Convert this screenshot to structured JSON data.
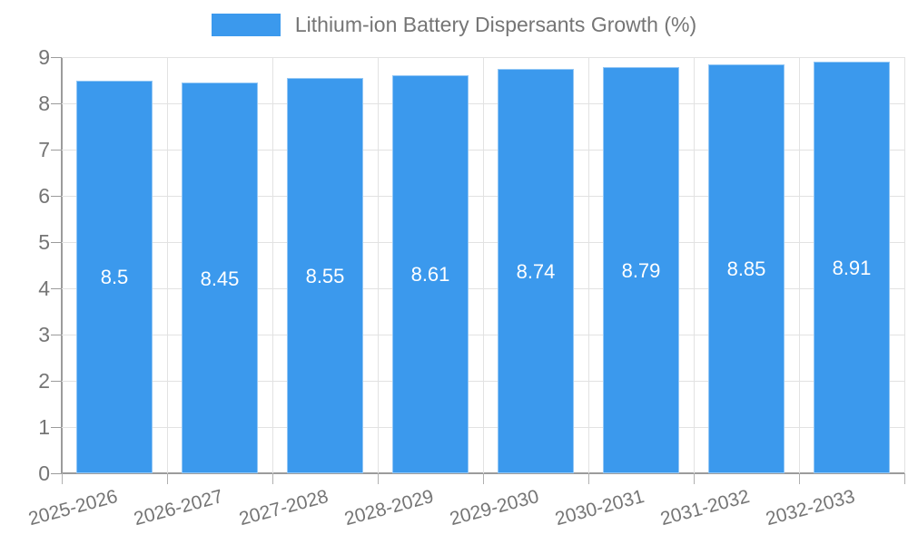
{
  "legend": {
    "label": "Lithium-ion Battery Dispersants Growth (%)"
  },
  "colors": {
    "bar_fill": "#3B99ED",
    "axis_line": "#9b9b9b",
    "gridline": "#e2e2e2",
    "tick_label": "#757575",
    "value_label": "#ffffff",
    "background": "#ffffff"
  },
  "chart_data": {
    "type": "bar",
    "title": "Lithium-ion Battery Dispersants Growth (%)",
    "categories": [
      "2025-2026",
      "2026-2027",
      "2027-2028",
      "2028-2029",
      "2029-2030",
      "2030-2031",
      "2031-2032",
      "2032-2033"
    ],
    "values": [
      8.5,
      8.45,
      8.55,
      8.61,
      8.74,
      8.79,
      8.85,
      8.91
    ],
    "value_labels": [
      "8.5",
      "8.45",
      "8.55",
      "8.61",
      "8.74",
      "8.79",
      "8.85",
      "8.91"
    ],
    "xlabel": "",
    "ylabel": "",
    "ylim": [
      0,
      9
    ],
    "yticks": [
      0,
      1,
      2,
      3,
      4,
      5,
      6,
      7,
      8,
      9
    ],
    "grid": true,
    "legend_position": "top",
    "x_label_rotation_deg": -15
  }
}
